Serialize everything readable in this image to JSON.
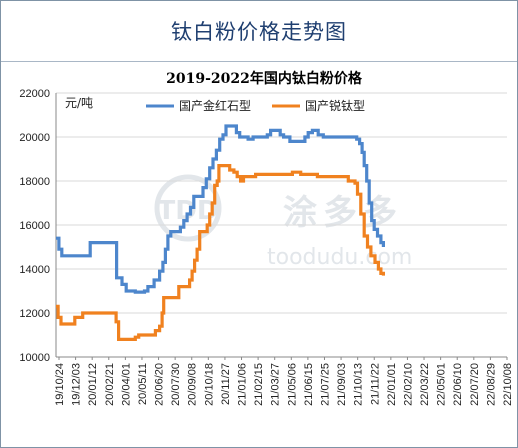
{
  "page_title": "钛白粉价格走势图",
  "watermark": {
    "brand": "涂多多",
    "url": "toodudu.com",
    "mark": "TDD"
  },
  "chart_data": {
    "type": "line",
    "title": "2019-2022年国内钛白粉价格",
    "ylabel": "元/吨",
    "ylim": [
      10000,
      22000
    ],
    "yticks": [
      10000,
      12000,
      14000,
      16000,
      18000,
      20000,
      22000
    ],
    "ytick_labels": [
      "10000",
      "12000",
      "14000",
      "16000",
      "18000",
      "20000",
      "22000"
    ],
    "xticks": [
      "19/10/24",
      "19/12/03",
      "20/01/12",
      "20/02/21",
      "20/04/01",
      "20/05/11",
      "20/06/20",
      "20/07/30",
      "20/09/08",
      "20/10/18",
      "20/11/27",
      "21/01/06",
      "21/02/15",
      "21/03/27",
      "21/05/06",
      "21/06/15",
      "21/07/25",
      "21/09/03",
      "21/10/13",
      "21/11/22",
      "22/01/01",
      "22/02/10",
      "22/03/22",
      "22/05/01",
      "22/06/10",
      "22/07/20",
      "22/08/29",
      "22/10/08"
    ],
    "grid": true,
    "legend_position": "top-center",
    "x_span_days": 1080,
    "series": [
      {
        "name": "国产金红石型",
        "color": "#4d86cc",
        "step": true,
        "points": [
          [
            0,
            15400
          ],
          [
            7,
            14900
          ],
          [
            14,
            14600
          ],
          [
            77,
            14600
          ],
          [
            82,
            15200
          ],
          [
            140,
            15200
          ],
          [
            145,
            13600
          ],
          [
            158,
            13300
          ],
          [
            168,
            13000
          ],
          [
            190,
            12950
          ],
          [
            212,
            13000
          ],
          [
            220,
            13200
          ],
          [
            235,
            13500
          ],
          [
            248,
            13900
          ],
          [
            256,
            14300
          ],
          [
            262,
            14900
          ],
          [
            268,
            15500
          ],
          [
            275,
            15700
          ],
          [
            290,
            15700
          ],
          [
            298,
            15900
          ],
          [
            306,
            16200
          ],
          [
            314,
            16500
          ],
          [
            322,
            16800
          ],
          [
            330,
            17300
          ],
          [
            345,
            17300
          ],
          [
            352,
            17700
          ],
          [
            360,
            18100
          ],
          [
            368,
            18600
          ],
          [
            376,
            19000
          ],
          [
            384,
            19400
          ],
          [
            392,
            19900
          ],
          [
            400,
            20100
          ],
          [
            407,
            20500
          ],
          [
            425,
            20500
          ],
          [
            432,
            20200
          ],
          [
            440,
            20000
          ],
          [
            452,
            20000
          ],
          [
            460,
            19900
          ],
          [
            472,
            20000
          ],
          [
            498,
            20000
          ],
          [
            506,
            20100
          ],
          [
            514,
            20300
          ],
          [
            530,
            20300
          ],
          [
            537,
            20100
          ],
          [
            545,
            20000
          ],
          [
            560,
            19800
          ],
          [
            588,
            19800
          ],
          [
            596,
            20000
          ],
          [
            604,
            20200
          ],
          [
            614,
            20300
          ],
          [
            628,
            20100
          ],
          [
            640,
            20000
          ],
          [
            720,
            19900
          ],
          [
            727,
            19700
          ],
          [
            733,
            19300
          ],
          [
            738,
            18700
          ],
          [
            744,
            18000
          ],
          [
            750,
            17000
          ],
          [
            756,
            16200
          ],
          [
            762,
            15800
          ],
          [
            770,
            15500
          ],
          [
            778,
            15200
          ],
          [
            784,
            15000
          ]
        ]
      },
      {
        "name": "国产锐钛型",
        "color": "#f0811f",
        "step": true,
        "points": [
          [
            0,
            12300
          ],
          [
            5,
            11800
          ],
          [
            12,
            11500
          ],
          [
            42,
            11500
          ],
          [
            45,
            11800
          ],
          [
            58,
            11800
          ],
          [
            64,
            12000
          ],
          [
            140,
            12000
          ],
          [
            144,
            11600
          ],
          [
            150,
            10800
          ],
          [
            180,
            10800
          ],
          [
            190,
            10900
          ],
          [
            198,
            11000
          ],
          [
            232,
            11000
          ],
          [
            238,
            11200
          ],
          [
            248,
            11400
          ],
          [
            254,
            12000
          ],
          [
            258,
            12700
          ],
          [
            288,
            12700
          ],
          [
            294,
            13200
          ],
          [
            314,
            13200
          ],
          [
            320,
            13500
          ],
          [
            326,
            13900
          ],
          [
            332,
            14400
          ],
          [
            338,
            14900
          ],
          [
            344,
            15700
          ],
          [
            356,
            15700
          ],
          [
            362,
            16000
          ],
          [
            368,
            16500
          ],
          [
            374,
            17000
          ],
          [
            380,
            17800
          ],
          [
            386,
            18000
          ],
          [
            390,
            18700
          ],
          [
            410,
            18700
          ],
          [
            416,
            18500
          ],
          [
            426,
            18400
          ],
          [
            434,
            18200
          ],
          [
            442,
            18000
          ],
          [
            449,
            18200
          ],
          [
            470,
            18200
          ],
          [
            478,
            18300
          ],
          [
            560,
            18300
          ],
          [
            566,
            18400
          ],
          [
            580,
            18400
          ],
          [
            586,
            18300
          ],
          [
            626,
            18200
          ],
          [
            690,
            18200
          ],
          [
            700,
            18000
          ],
          [
            716,
            17900
          ],
          [
            722,
            17400
          ],
          [
            730,
            16500
          ],
          [
            738,
            15500
          ],
          [
            746,
            15000
          ],
          [
            754,
            14600
          ],
          [
            764,
            14300
          ],
          [
            772,
            14000
          ],
          [
            778,
            13800
          ],
          [
            784,
            13700
          ]
        ]
      }
    ]
  }
}
